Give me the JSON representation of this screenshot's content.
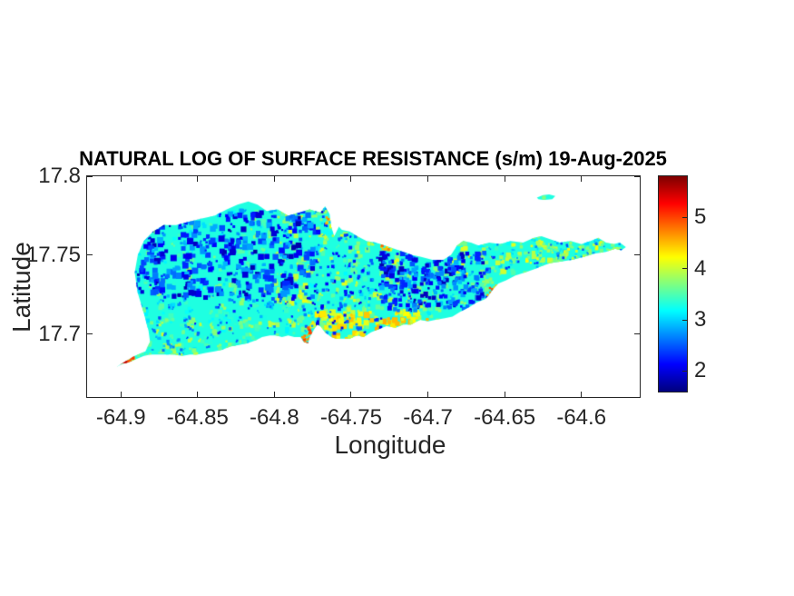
{
  "chart_data": {
    "type": "heatmap",
    "title": "NATURAL LOG OF SURFACE RESISTANCE (s/m) 19-Aug-2025",
    "xlabel": "Longitude",
    "ylabel": "Latitude",
    "xlim": [
      -64.922,
      -64.562
    ],
    "ylim": [
      17.66,
      17.8
    ],
    "x_ticks": {
      "values": [
        -64.9,
        -64.85,
        -64.8,
        -64.75,
        -64.7,
        -64.65,
        -64.6
      ],
      "labels": [
        "-64.9",
        "-64.85",
        "-64.8",
        "-64.75",
        "-64.7",
        "-64.65",
        "-64.6"
      ]
    },
    "y_ticks": {
      "values": [
        17.8,
        17.75,
        17.7
      ],
      "labels": [
        "17.8",
        "17.75",
        "17.7"
      ]
    },
    "grid": false,
    "colorbar": {
      "colormap": "jet",
      "clim": [
        1.6,
        5.8
      ],
      "tick_values": [
        2,
        3,
        4,
        5
      ],
      "tick_labels": [
        "2",
        "3",
        "4",
        "5"
      ],
      "position": "right"
    },
    "field_description": "ln(surface resistance): mostly 2.8-3.8 (cyan/green) across the island; low pockets 1.8-2.9 (blue) clustered in the northwest and north-center; higher 3.9-4.6 (yellow/orange) along the south-central coast and eastern arm; isolated maxima 4.7-5.6 (red/orange) at the southwest tip and small coastal spots",
    "base_value": 3.3,
    "island_outline": [
      [
        -64.903,
        17.679
      ],
      [
        -64.898,
        17.682
      ],
      [
        -64.891,
        17.686
      ],
      [
        -64.884,
        17.689
      ],
      [
        -64.881,
        17.695
      ],
      [
        -64.882,
        17.702
      ],
      [
        -64.885,
        17.713
      ],
      [
        -64.889,
        17.726
      ],
      [
        -64.891,
        17.739
      ],
      [
        -64.889,
        17.75
      ],
      [
        -64.885,
        17.759
      ],
      [
        -64.879,
        17.765
      ],
      [
        -64.872,
        17.769
      ],
      [
        -64.864,
        17.769
      ],
      [
        -64.856,
        17.771
      ],
      [
        -64.848,
        17.773
      ],
      [
        -64.839,
        17.775
      ],
      [
        -64.831,
        17.779
      ],
      [
        -64.824,
        17.782
      ],
      [
        -64.817,
        17.784
      ],
      [
        -64.811,
        17.782
      ],
      [
        -64.805,
        17.778
      ],
      [
        -64.798,
        17.779
      ],
      [
        -64.791,
        17.775
      ],
      [
        -64.784,
        17.777
      ],
      [
        -64.777,
        17.779
      ],
      [
        -64.77,
        17.777
      ],
      [
        -64.767,
        17.781
      ],
      [
        -64.764,
        17.776
      ],
      [
        -64.763,
        17.768
      ],
      [
        -64.761,
        17.762
      ],
      [
        -64.758,
        17.768
      ],
      [
        -64.756,
        17.766
      ],
      [
        -64.751,
        17.765
      ],
      [
        -64.746,
        17.762
      ],
      [
        -64.74,
        17.759
      ],
      [
        -64.734,
        17.758
      ],
      [
        -64.728,
        17.756
      ],
      [
        -64.722,
        17.754
      ],
      [
        -64.716,
        17.752
      ],
      [
        -64.71,
        17.75
      ],
      [
        -64.705,
        17.749
      ],
      [
        -64.697,
        17.747
      ],
      [
        -64.69,
        17.747
      ],
      [
        -64.685,
        17.75
      ],
      [
        -64.681,
        17.756
      ],
      [
        -64.677,
        17.759
      ],
      [
        -64.672,
        17.758
      ],
      [
        -64.667,
        17.756
      ],
      [
        -64.66,
        17.758
      ],
      [
        -64.653,
        17.757
      ],
      [
        -64.646,
        17.759
      ],
      [
        -64.638,
        17.758
      ],
      [
        -64.631,
        17.761
      ],
      [
        -64.626,
        17.762
      ],
      [
        -64.62,
        17.76
      ],
      [
        -64.614,
        17.758
      ],
      [
        -64.607,
        17.759
      ],
      [
        -64.6,
        17.757
      ],
      [
        -64.594,
        17.759
      ],
      [
        -64.589,
        17.761
      ],
      [
        -64.584,
        17.758
      ],
      [
        -64.579,
        17.757
      ],
      [
        -64.575,
        17.758
      ],
      [
        -64.571,
        17.755
      ],
      [
        -64.574,
        17.753
      ],
      [
        -64.578,
        17.754
      ],
      [
        -64.584,
        17.752
      ],
      [
        -64.591,
        17.751
      ],
      [
        -64.598,
        17.749
      ],
      [
        -64.606,
        17.747
      ],
      [
        -64.613,
        17.746
      ],
      [
        -64.62,
        17.745
      ],
      [
        -64.626,
        17.743
      ],
      [
        -64.631,
        17.741
      ],
      [
        -64.637,
        17.739
      ],
      [
        -64.643,
        17.737
      ],
      [
        -64.649,
        17.734
      ],
      [
        -64.654,
        17.732
      ],
      [
        -64.657,
        17.729
      ],
      [
        -64.66,
        17.725
      ],
      [
        -64.663,
        17.722
      ],
      [
        -64.668,
        17.72
      ],
      [
        -64.673,
        17.717
      ],
      [
        -64.679,
        17.714
      ],
      [
        -64.684,
        17.711
      ],
      [
        -64.689,
        17.71
      ],
      [
        -64.695,
        17.709
      ],
      [
        -64.7,
        17.708
      ],
      [
        -64.705,
        17.709
      ],
      [
        -64.711,
        17.706
      ],
      [
        -64.716,
        17.706
      ],
      [
        -64.721,
        17.704
      ],
      [
        -64.727,
        17.705
      ],
      [
        -64.732,
        17.703
      ],
      [
        -64.737,
        17.701
      ],
      [
        -64.742,
        17.698
      ],
      [
        -64.746,
        17.699
      ],
      [
        -64.751,
        17.697
      ],
      [
        -64.755,
        17.697
      ],
      [
        -64.76,
        17.697
      ],
      [
        -64.763,
        17.698
      ],
      [
        -64.767,
        17.701
      ],
      [
        -64.77,
        17.705
      ],
      [
        -64.772,
        17.706
      ],
      [
        -64.774,
        17.703
      ],
      [
        -64.777,
        17.698
      ],
      [
        -64.778,
        17.694
      ],
      [
        -64.781,
        17.695
      ],
      [
        -64.783,
        17.698
      ],
      [
        -64.787,
        17.698
      ],
      [
        -64.791,
        17.699
      ],
      [
        -64.795,
        17.698
      ],
      [
        -64.799,
        17.699
      ],
      [
        -64.803,
        17.699
      ],
      [
        -64.808,
        17.698
      ],
      [
        -64.812,
        17.696
      ],
      [
        -64.818,
        17.694
      ],
      [
        -64.823,
        17.693
      ],
      [
        -64.829,
        17.692
      ],
      [
        -64.834,
        17.69
      ],
      [
        -64.839,
        17.689
      ],
      [
        -64.845,
        17.688
      ],
      [
        -64.85,
        17.687
      ],
      [
        -64.855,
        17.687
      ],
      [
        -64.86,
        17.686
      ],
      [
        -64.866,
        17.687
      ],
      [
        -64.871,
        17.687
      ],
      [
        -64.876,
        17.687
      ],
      [
        -64.881,
        17.687
      ],
      [
        -64.885,
        17.686
      ],
      [
        -64.89,
        17.684
      ],
      [
        -64.895,
        17.682
      ],
      [
        -64.899,
        17.681
      ]
    ],
    "offshore_islet_outline": [
      [
        -64.629,
        17.7865
      ],
      [
        -64.625,
        17.788
      ],
      [
        -64.621,
        17.7885
      ],
      [
        -64.617,
        17.7875
      ],
      [
        -64.619,
        17.7855
      ],
      [
        -64.624,
        17.785
      ],
      [
        -64.628,
        17.7855
      ]
    ],
    "noise_regions": [
      {
        "name": "cyan-green-texture",
        "lon": [
          -64.905,
          -64.565
        ],
        "lat": [
          17.672,
          17.79
        ],
        "count": 900,
        "size": [
          2,
          6
        ],
        "value": [
          3.0,
          3.8
        ]
      },
      {
        "name": "yellow-green-patches-center-east",
        "lon": [
          -64.8,
          -64.565
        ],
        "lat": [
          17.7,
          17.785
        ],
        "count": 420,
        "size": [
          2,
          6
        ],
        "value": [
          3.5,
          4.15
        ]
      },
      {
        "name": "west-green-patches",
        "lon": [
          -64.9,
          -64.8
        ],
        "lat": [
          17.68,
          17.71
        ],
        "count": 100,
        "size": [
          2,
          5
        ],
        "value": [
          3.4,
          4.0
        ]
      },
      {
        "name": "south-central-yellow-orange-band",
        "lon": [
          -64.777,
          -64.7
        ],
        "lat": [
          17.693,
          17.714
        ],
        "count": 130,
        "size": [
          3,
          7
        ],
        "value": [
          3.9,
          4.55
        ]
      },
      {
        "name": "east-arm-yellow",
        "lon": [
          -64.64,
          -64.57
        ],
        "lat": [
          17.745,
          17.765
        ],
        "count": 110,
        "size": [
          2,
          4
        ],
        "value": [
          3.6,
          4.2
        ]
      },
      {
        "name": "northwest-blue-cluster",
        "lon": [
          -64.898,
          -64.775
        ],
        "lat": [
          17.722,
          17.779
        ],
        "count": 400,
        "size": [
          2,
          7
        ],
        "value": [
          1.75,
          2.9
        ]
      },
      {
        "name": "southwest-scattered-blue",
        "lon": [
          -64.898,
          -64.77
        ],
        "lat": [
          17.682,
          17.724
        ],
        "count": 130,
        "size": [
          1.5,
          3.5
        ],
        "value": [
          2.2,
          3.0
        ]
      },
      {
        "name": "central-scattered-blue",
        "lon": [
          -64.775,
          -64.73
        ],
        "lat": [
          17.7,
          17.78
        ],
        "count": 150,
        "size": [
          1.5,
          4
        ],
        "value": [
          2.0,
          3.0
        ]
      },
      {
        "name": "north-central-blue-cluster",
        "lon": [
          -64.73,
          -64.66
        ],
        "lat": [
          17.715,
          17.752
        ],
        "count": 240,
        "size": [
          2,
          6
        ],
        "value": [
          1.8,
          2.9
        ]
      },
      {
        "name": "east-scattered-blue",
        "lon": [
          -64.66,
          -64.572
        ],
        "lat": [
          17.74,
          17.768
        ],
        "count": 90,
        "size": [
          1.5,
          3
        ],
        "value": [
          2.3,
          3.1
        ]
      },
      {
        "name": "northeast-coast-orange-strip",
        "lon": [
          -64.731,
          -64.724
        ],
        "lat": [
          17.752,
          17.76
        ],
        "count": 10,
        "size": [
          2,
          4
        ],
        "value": [
          4.2,
          4.9
        ]
      },
      {
        "name": "salt-river-orange-dot",
        "lon": [
          -64.766,
          -64.762
        ],
        "lat": [
          17.768,
          17.774
        ],
        "count": 5,
        "size": [
          2,
          3
        ],
        "value": [
          4.2,
          4.8
        ]
      },
      {
        "name": "south-coast-orange-spot",
        "lon": [
          -64.782,
          -64.776
        ],
        "lat": [
          17.693,
          17.704
        ],
        "count": 14,
        "size": [
          2,
          4
        ],
        "value": [
          4.5,
          5.3
        ]
      },
      {
        "name": "southeast-orange-spot",
        "lon": [
          -64.662,
          -64.656
        ],
        "lat": [
          17.722,
          17.73
        ],
        "count": 9,
        "size": [
          2,
          4
        ],
        "value": [
          4.3,
          5.0
        ]
      },
      {
        "name": "southwest-tip-red",
        "lon": [
          -64.904,
          -64.892
        ],
        "lat": [
          17.68,
          17.687
        ],
        "count": 18,
        "size": [
          2,
          4
        ],
        "value": [
          4.7,
          5.6
        ]
      }
    ]
  }
}
